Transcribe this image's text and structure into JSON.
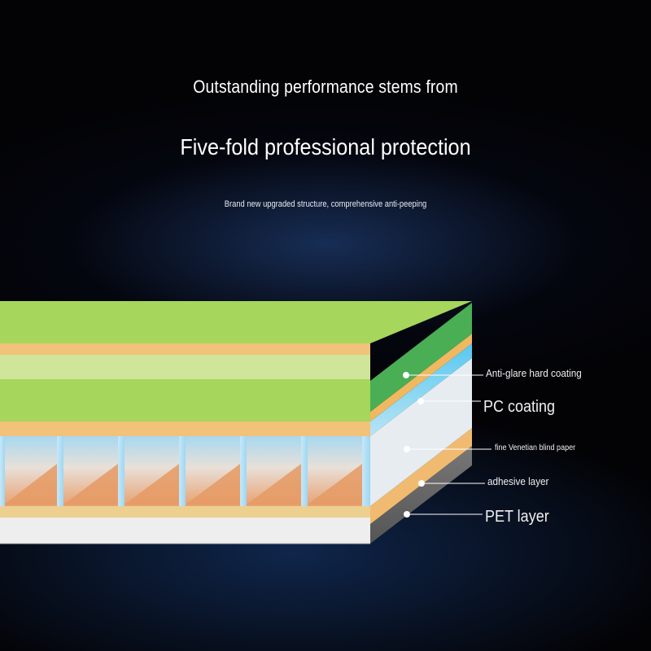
{
  "header": {
    "line1": "Outstanding performance stems from",
    "line2": "Five-fold professional protection",
    "line3": "Brand new upgraded structure, comprehensive anti-peeping"
  },
  "layers": [
    {
      "label": "Anti-glare hard coating",
      "color": "#5cb85c"
    },
    {
      "label": "PC coating",
      "color": "#7fd0f0"
    },
    {
      "label": "fine Venetian blind paper",
      "color": "#e8a070"
    },
    {
      "label": "adhesive layer",
      "color": "#e8b070"
    },
    {
      "label": "PET layer",
      "color": "#eeeeee"
    }
  ],
  "colors": {
    "background": "#030306",
    "text": "#ffffff",
    "leader_line": "#ffffff"
  }
}
